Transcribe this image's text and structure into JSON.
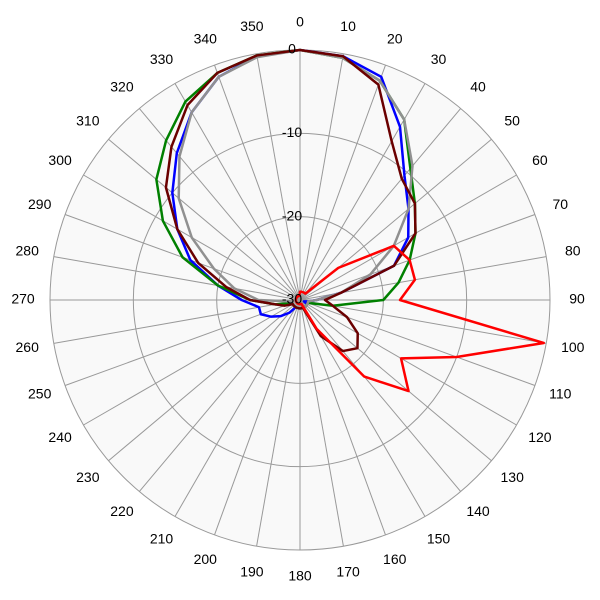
{
  "chart_data": {
    "type": "polar",
    "x": [
      0,
      10,
      20,
      30,
      40,
      50,
      60,
      70,
      80,
      90,
      100,
      110,
      120,
      130,
      140,
      150,
      160,
      170,
      180,
      190,
      200,
      210,
      220,
      230,
      240,
      250,
      260,
      270,
      280,
      290,
      300,
      310,
      320,
      330,
      340,
      350
    ],
    "xticks": [
      0,
      10,
      20,
      30,
      40,
      50,
      60,
      70,
      80,
      90,
      100,
      110,
      120,
      130,
      140,
      150,
      160,
      170,
      180,
      190,
      200,
      210,
      220,
      230,
      240,
      250,
      260,
      270,
      280,
      290,
      300,
      310,
      320,
      330,
      340,
      350
    ],
    "ylim": [
      -30,
      0
    ],
    "yticks": [
      -30,
      -20,
      -10,
      0
    ],
    "grid": true,
    "series": [
      {
        "color": "#0000ff",
        "values": [
          0,
          -0.3,
          -1.5,
          -6,
          -10.5,
          -13,
          -15,
          -18,
          -25,
          -28,
          -29,
          -29.5,
          -29,
          -29,
          -29,
          -29,
          -29,
          -29,
          -29,
          -29,
          -29,
          -29,
          -28,
          -27,
          -26,
          -25,
          -25,
          -23,
          -20,
          -16,
          -13,
          -10,
          -7,
          -4,
          -1.5,
          -0.3
        ]
      },
      {
        "color": "#008000",
        "values": [
          0,
          -0.5,
          -2,
          -5,
          -9.4,
          -12,
          -14,
          -16,
          -18,
          -20,
          -26,
          -29,
          -29,
          -29,
          -29,
          -29,
          -29,
          -29,
          -29,
          -29,
          -29,
          -29,
          -29,
          -29,
          -29,
          -29,
          -27,
          -24,
          -20,
          -15,
          -11,
          -7.5,
          -5,
          -2.5,
          -1,
          -0.2
        ]
      },
      {
        "color": "#909090",
        "values": [
          0,
          -0.5,
          -2,
          -5,
          -9,
          -13,
          -17,
          -21,
          -25,
          -28,
          -29,
          -29,
          -29,
          -29,
          -29,
          -29,
          -29,
          -29,
          -29,
          -29,
          -29,
          -29,
          -29,
          -29,
          -29,
          -29,
          -29,
          -25,
          -22,
          -19,
          -15,
          -11,
          -7.5,
          -4,
          -1.5,
          -0.4
        ]
      },
      {
        "color": "#6b0000",
        "values": [
          0,
          -0.3,
          -2.5,
          -8,
          -11,
          -12,
          -14,
          -18,
          -25,
          -27,
          -26,
          -24,
          -22,
          -21,
          -22,
          -25,
          -29,
          -29,
          -29,
          -29,
          -29,
          -29,
          -29,
          -29,
          -29,
          -28,
          -27,
          -24,
          -21,
          -17,
          -13,
          -9,
          -6,
          -3,
          -1,
          -0.2
        ]
      },
      {
        "color": "#ff0000",
        "values": [
          -29,
          -29,
          -29,
          -29,
          -29,
          -24,
          -17,
          -16,
          -16,
          -18,
          -0.3,
          -10,
          -16,
          -13,
          -18,
          -26,
          -29.5,
          -29.5,
          -29.5,
          -29.5,
          -29.5,
          -29.5,
          -29.5,
          -29.5,
          -29.5,
          -29.5,
          -29.5,
          -29.5,
          -29.5,
          -29.5,
          -29.5,
          -29.5,
          -29.5,
          -29.5,
          -29.5,
          -29.5
        ]
      }
    ]
  }
}
